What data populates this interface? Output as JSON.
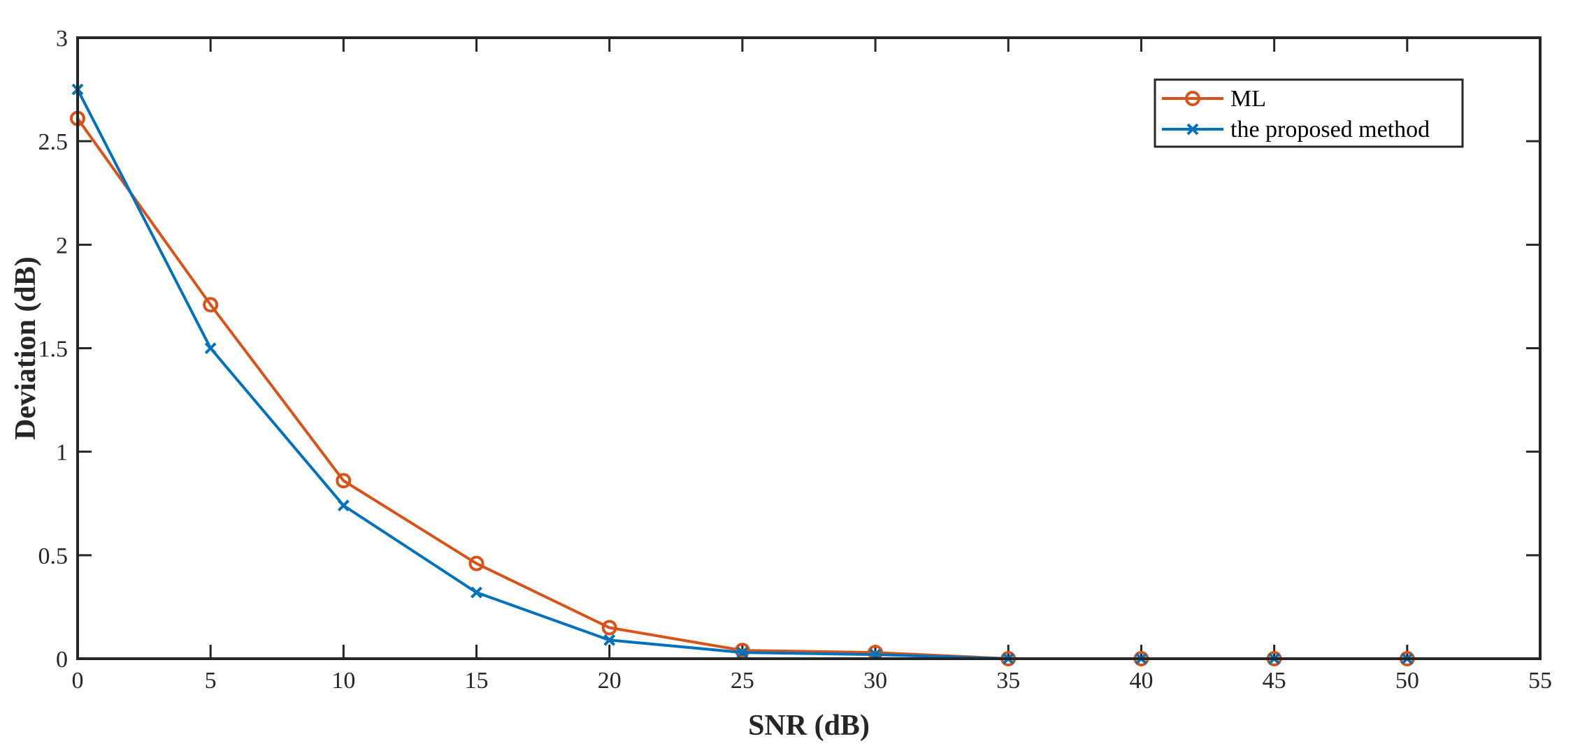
{
  "chart_data": {
    "type": "line",
    "title": "",
    "xlabel": "SNR (dB)",
    "ylabel": "Deviation (dB)",
    "xlim": [
      0,
      55
    ],
    "ylim": [
      0,
      3
    ],
    "xticks": [
      0,
      5,
      10,
      15,
      20,
      25,
      30,
      35,
      40,
      45,
      50,
      55
    ],
    "yticks": [
      0,
      0.5,
      1,
      1.5,
      2,
      2.5,
      3
    ],
    "xtick_labels": [
      "0",
      "5",
      "10",
      "15",
      "20",
      "25",
      "30",
      "35",
      "40",
      "45",
      "50",
      "55"
    ],
    "ytick_labels": [
      "0",
      "0.5",
      "1",
      "1.5",
      "2",
      "2.5",
      "3"
    ],
    "grid": false,
    "legend_position": "top-right",
    "x": [
      0,
      5,
      10,
      15,
      20,
      25,
      30,
      35,
      40,
      45,
      50
    ],
    "series": [
      {
        "name": "ML",
        "color": "#D95319",
        "marker": "circle",
        "values": [
          2.61,
          1.71,
          0.86,
          0.46,
          0.15,
          0.04,
          0.03,
          0.0,
          0.0,
          0.0,
          0.0
        ]
      },
      {
        "name": "the proposed method",
        "color": "#0072BD",
        "marker": "x",
        "values": [
          2.75,
          1.5,
          0.74,
          0.32,
          0.09,
          0.03,
          0.02,
          0.0,
          0.0,
          0.0,
          0.0
        ]
      }
    ]
  }
}
